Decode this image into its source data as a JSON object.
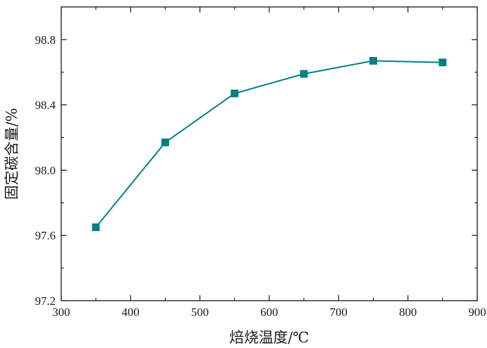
{
  "chart_data": {
    "type": "line",
    "xlabel": "焙烧温度/℃",
    "ylabel": "固定碳含量/%",
    "xlim": [
      300,
      900
    ],
    "ylim": [
      97.2,
      99.0
    ],
    "xticks": [
      300,
      400,
      500,
      600,
      700,
      800,
      900
    ],
    "xtick_labels": [
      "300",
      "400",
      "500",
      "600",
      "700",
      "800",
      "900"
    ],
    "yticks": [
      97.2,
      97.6,
      98.0,
      98.4,
      98.8
    ],
    "ytick_labels": [
      "97.2",
      "97.6",
      "98.0",
      "98.4",
      "98.8"
    ],
    "series": [
      {
        "x": [
          350,
          450,
          550,
          650,
          750,
          850
        ],
        "y": [
          97.65,
          98.17,
          98.47,
          98.59,
          98.67,
          98.66
        ],
        "color": "#008080",
        "marker": "square"
      }
    ],
    "grid": false,
    "legend": "none"
  }
}
